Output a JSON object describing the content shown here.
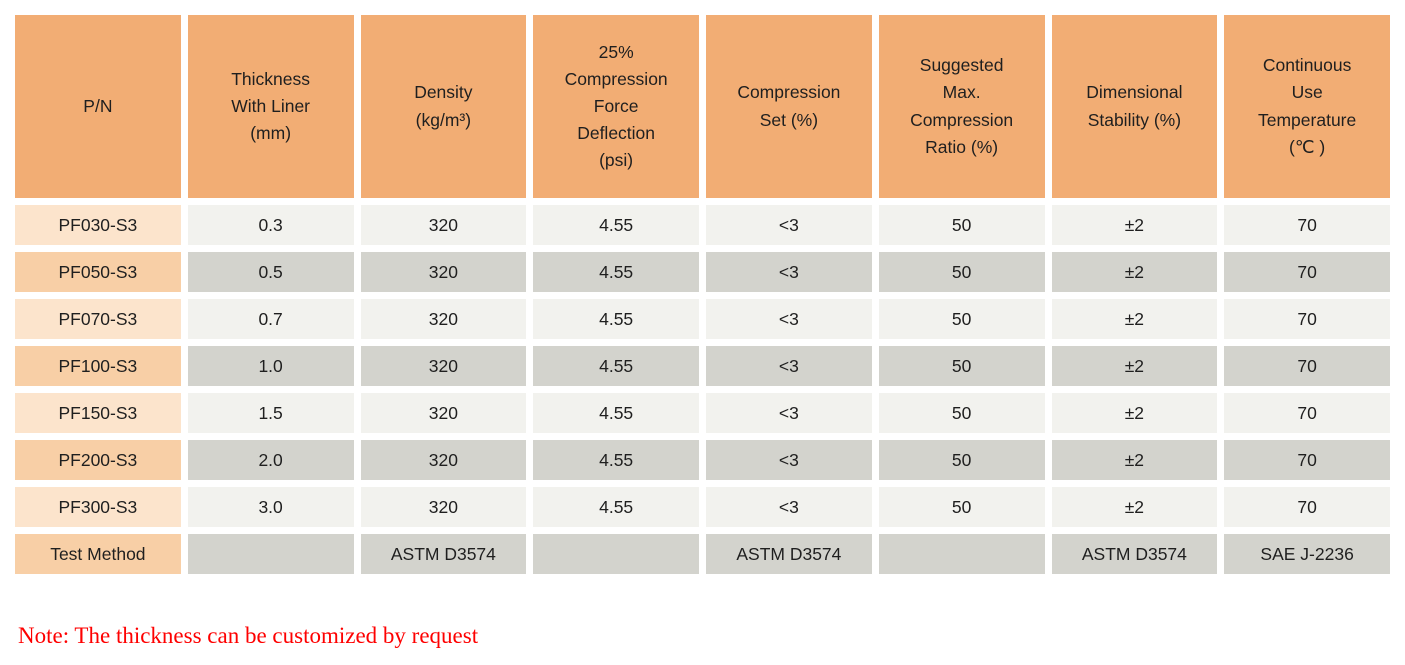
{
  "colors": {
    "header_bg": "#f2ad74",
    "pn_odd_bg": "#fce4cc",
    "pn_even_bg": "#f8cfa6",
    "cell_odd_bg": "#f2f2ee",
    "cell_even_bg": "#d3d3cd",
    "text_color": "#1f1f1f",
    "note_color": "#fe0000",
    "page_bg": "#ffffff"
  },
  "table": {
    "headers": [
      "P/N",
      "Thickness\nWith Liner\n(mm)",
      "Density\n(kg/m³)",
      "25%\nCompression\nForce\nDeflection\n(psi)",
      "Compression\nSet (%)",
      "Suggested\nMax.\nCompression\nRatio (%)",
      "Dimensional\nStability (%)",
      "Continuous\nUse\nTemperature\n(℃ )"
    ],
    "rows": [
      [
        "PF030-S3",
        "0.3",
        "320",
        "4.55",
        "<3",
        "50",
        "±2",
        "70"
      ],
      [
        "PF050-S3",
        "0.5",
        "320",
        "4.55",
        "<3",
        "50",
        "±2",
        "70"
      ],
      [
        "PF070-S3",
        "0.7",
        "320",
        "4.55",
        "<3",
        "50",
        "±2",
        "70"
      ],
      [
        "PF100-S3",
        "1.0",
        "320",
        "4.55",
        "<3",
        "50",
        "±2",
        "70"
      ],
      [
        "PF150-S3",
        "1.5",
        "320",
        "4.55",
        "<3",
        "50",
        "±2",
        "70"
      ],
      [
        "PF200-S3",
        "2.0",
        "320",
        "4.55",
        "<3",
        "50",
        "±2",
        "70"
      ],
      [
        "PF300-S3",
        "3.0",
        "320",
        "4.55",
        "<3",
        "50",
        "±2",
        "70"
      ],
      [
        "Test Method",
        "",
        "ASTM D3574",
        "",
        "ASTM D3574",
        "",
        "ASTM D3574",
        "SAE J-2236"
      ]
    ]
  },
  "note": "Note: The thickness can be customized by request"
}
